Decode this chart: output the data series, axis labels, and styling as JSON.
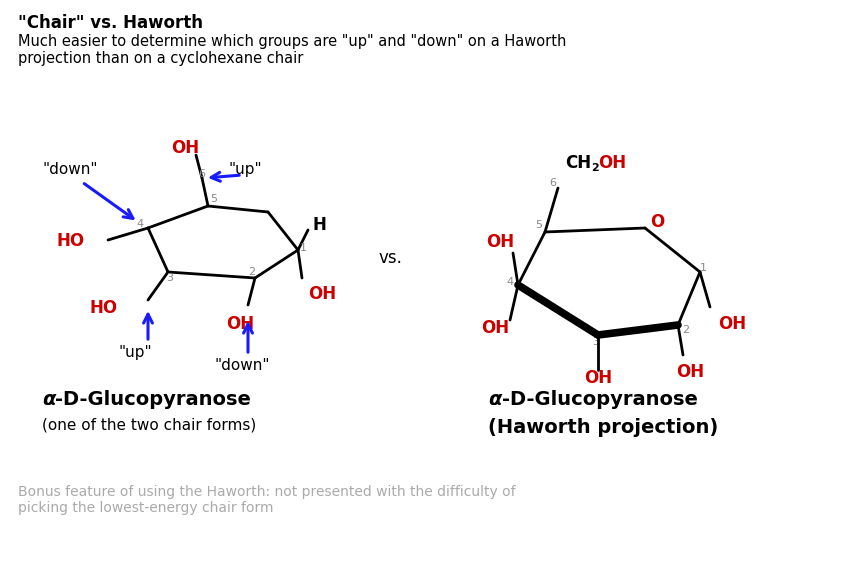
{
  "title": "\"Chair\" vs. Haworth",
  "subtitle": "Much easier to determine which groups are \"up\" and \"down\" on a Haworth\nprojection than on a cyclohexane chair",
  "vs_text": "vs.",
  "background_color": "#ffffff",
  "red_color": "#cc0000",
  "blue_color": "#1a1aff",
  "gray_color": "#aaaaaa",
  "bonus_text": "Bonus feature of using the Haworth: not presented with the difficulty of\npicking the lowest-energy chair form",
  "label_left1_italic": "α",
  "label_left1_bold": "-D-Glucopyranose",
  "label_left2": "(one of the two chair forms)",
  "label_right1_italic": "α",
  "label_right1_bold": "-D-Glucopyranose",
  "label_right2": "(Haworth projection)"
}
